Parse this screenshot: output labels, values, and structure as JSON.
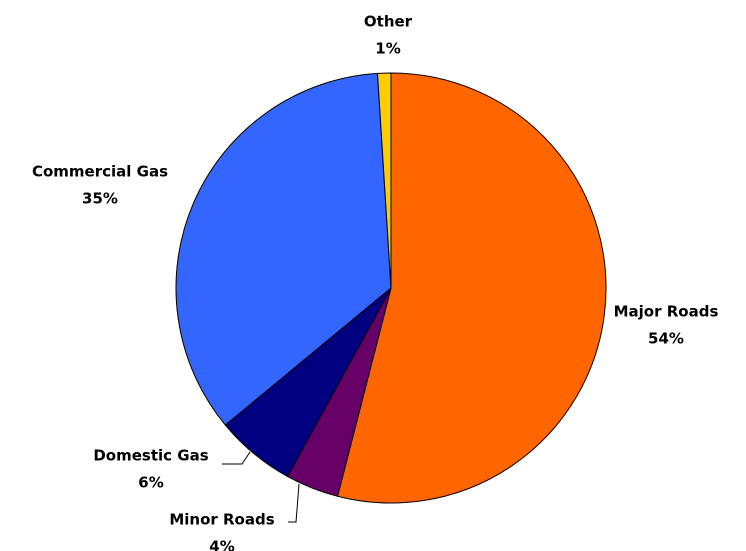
{
  "chart_data": {
    "type": "pie",
    "categories": [
      "Major Roads",
      "Minor Roads",
      "Domestic Gas",
      "Commercial Gas",
      "Other"
    ],
    "values": [
      54,
      4,
      6,
      35,
      1
    ],
    "value_labels": [
      "54%",
      "4%",
      "6%",
      "35%",
      "1%"
    ],
    "colors": [
      "#ff6600",
      "#660066",
      "#000080",
      "#3366ff",
      "#ffcc00"
    ]
  }
}
